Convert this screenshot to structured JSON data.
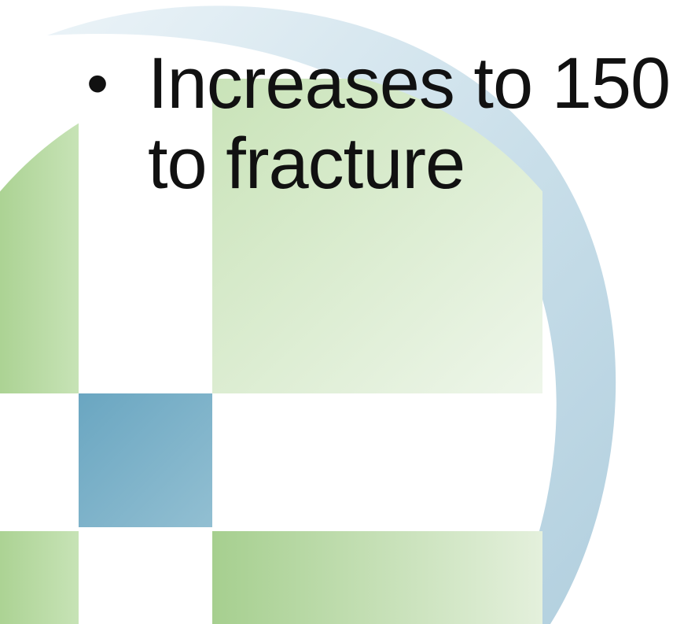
{
  "slide": {
    "bullet_symbol": "•",
    "bullet_text_line1": "Increases to 150",
    "bullet_text_line2": "to fracture"
  },
  "colors": {
    "green_light": "#e2efd9",
    "green_mid": "#bddcaa",
    "green_dark": "#a8cf8e",
    "blue_square": "#7fb1c8",
    "blue_square_dark": "#5f9db8",
    "arc_blue": "#c7dde8",
    "text": "#111111"
  }
}
